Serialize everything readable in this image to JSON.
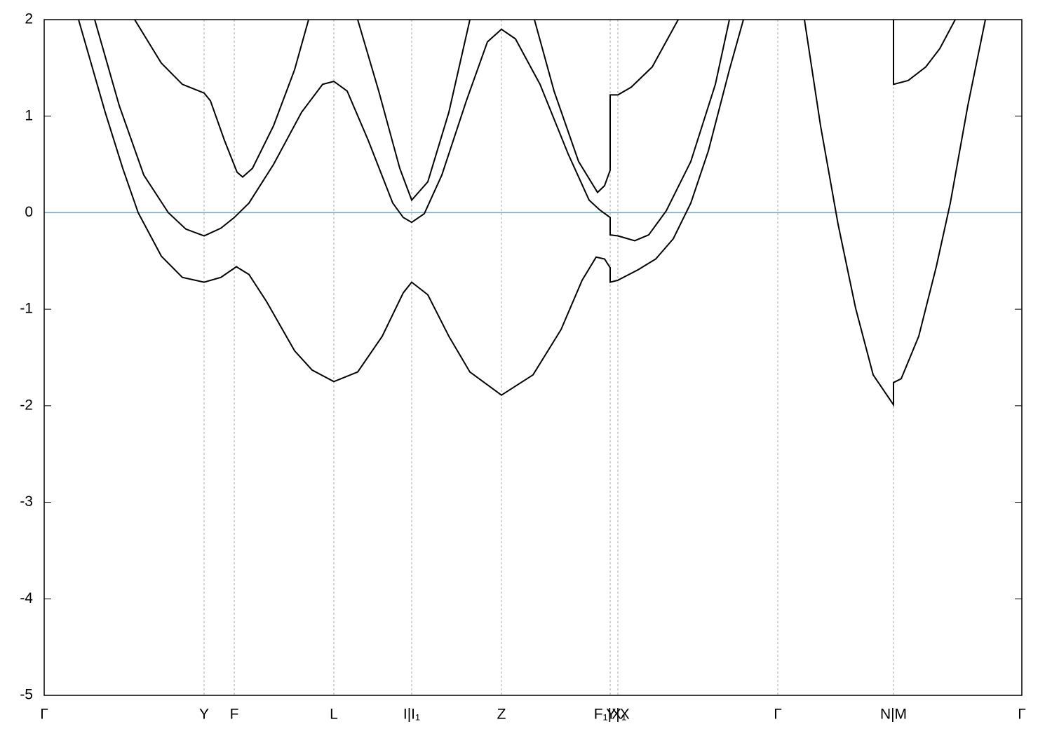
{
  "chart_data": {
    "type": "line",
    "xlim": [
      0,
      13.94
    ],
    "xticks": [
      {
        "value": 0,
        "label": "Γ"
      },
      {
        "value": 2.28,
        "label": "Y"
      },
      {
        "value": 2.71,
        "label": "F"
      },
      {
        "value": 4.13,
        "label": "L"
      },
      {
        "value": 5.24,
        "label": "I|I₁"
      },
      {
        "value": 6.52,
        "label": "Z"
      },
      {
        "value": 8.07,
        "label": "F₁|X₁"
      },
      {
        "value": 8.18,
        "label": "Y|X"
      },
      {
        "value": 10.46,
        "label": "Γ"
      },
      {
        "value": 12.11,
        "label": "N|M"
      },
      {
        "value": 13.94,
        "label": "Γ"
      }
    ],
    "ylim": [
      -5,
      2
    ],
    "yticks": [
      -5,
      -4,
      -3,
      -2,
      -1,
      0,
      1,
      2
    ],
    "xgrid": true,
    "reference_line": {
      "value": 0,
      "color": "#5ab4c8"
    },
    "series": [
      {
        "color": "#000000",
        "x": [
          0.49,
          0.87,
          1.12,
          1.34,
          1.67,
          1.97,
          2.28,
          2.52,
          2.74,
          2.92,
          3.17,
          3.57,
          3.82,
          4.13,
          4.47,
          4.82,
          5.12,
          5.24,
          5.47,
          5.77,
          6.07,
          6.52,
          6.97,
          7.37,
          7.67,
          7.87,
          7.99,
          8.07,
          8.07,
          8.18,
          8.47,
          8.72,
          8.97,
          9.22,
          9.47,
          9.77,
          9.97
        ],
        "values": [
          2.0,
          1.04,
          0.46,
          0.0,
          -0.45,
          -0.67,
          -0.72,
          -0.67,
          -0.56,
          -0.64,
          -0.92,
          -1.43,
          -1.63,
          -1.75,
          -1.65,
          -1.28,
          -0.83,
          -0.72,
          -0.85,
          -1.28,
          -1.65,
          -1.89,
          -1.68,
          -1.21,
          -0.7,
          -0.46,
          -0.48,
          -0.57,
          -0.72,
          -0.7,
          -0.59,
          -0.48,
          -0.27,
          0.1,
          0.64,
          1.48,
          2.0
        ]
      },
      {
        "color": "#000000",
        "x": [
          0.72,
          1.07,
          1.42,
          1.77,
          2.02,
          2.28,
          2.52,
          2.71,
          2.92,
          3.27,
          3.67,
          3.97,
          4.13,
          4.32,
          4.62,
          4.97,
          5.12,
          5.24,
          5.42,
          5.67,
          6.02,
          6.32,
          6.52,
          6.72,
          7.07,
          7.47,
          7.77,
          7.92,
          8.07,
          8.07,
          8.18,
          8.42,
          8.62,
          8.87,
          9.22,
          9.57,
          9.77
        ],
        "values": [
          2.0,
          1.11,
          0.39,
          0.0,
          -0.17,
          -0.24,
          -0.16,
          -0.05,
          0.1,
          0.5,
          1.04,
          1.33,
          1.36,
          1.26,
          0.75,
          0.1,
          -0.05,
          -0.1,
          -0.01,
          0.39,
          1.16,
          1.77,
          1.9,
          1.8,
          1.33,
          0.61,
          0.13,
          0.03,
          -0.05,
          -0.23,
          -0.24,
          -0.29,
          -0.23,
          0.02,
          0.53,
          1.33,
          2.0
        ]
      },
      {
        "color": "#000000",
        "x": [
          1.29,
          1.67,
          1.97,
          2.28,
          2.37,
          2.57,
          2.75,
          2.83,
          2.97,
          3.27,
          3.57,
          3.77,
          null,
          4.47,
          4.77,
          5.07,
          5.24,
          5.47,
          5.77,
          6.07,
          null,
          6.99,
          7.27,
          7.62,
          7.89,
          7.99,
          8.07,
          8.07,
          8.18,
          8.37,
          8.67,
          9.04
        ],
        "values": [
          2.0,
          1.55,
          1.33,
          1.24,
          1.16,
          0.75,
          0.42,
          0.37,
          0.46,
          0.9,
          1.48,
          2.0,
          null,
          2.0,
          1.26,
          0.46,
          0.13,
          0.32,
          1.04,
          2.0,
          null,
          2.0,
          1.26,
          0.53,
          0.21,
          0.28,
          0.44,
          1.22,
          1.22,
          1.3,
          1.51,
          2.0
        ]
      },
      {
        "color": "#000000",
        "x": [
          10.84,
          11.07,
          11.32,
          11.57,
          11.82,
          12.11,
          12.11,
          12.22,
          12.47,
          12.72,
          12.92,
          13.17,
          13.42
        ],
        "values": [
          2.0,
          0.9,
          -0.12,
          -0.99,
          -1.68,
          -1.99,
          -1.76,
          -1.72,
          -1.28,
          -0.56,
          0.1,
          1.11,
          2.0
        ]
      },
      {
        "color": "#000000",
        "x": [
          12.11,
          12.11,
          12.32,
          12.57,
          12.77,
          12.99
        ],
        "values": [
          2.0,
          1.33,
          1.37,
          1.51,
          1.7,
          2.0
        ]
      }
    ]
  }
}
